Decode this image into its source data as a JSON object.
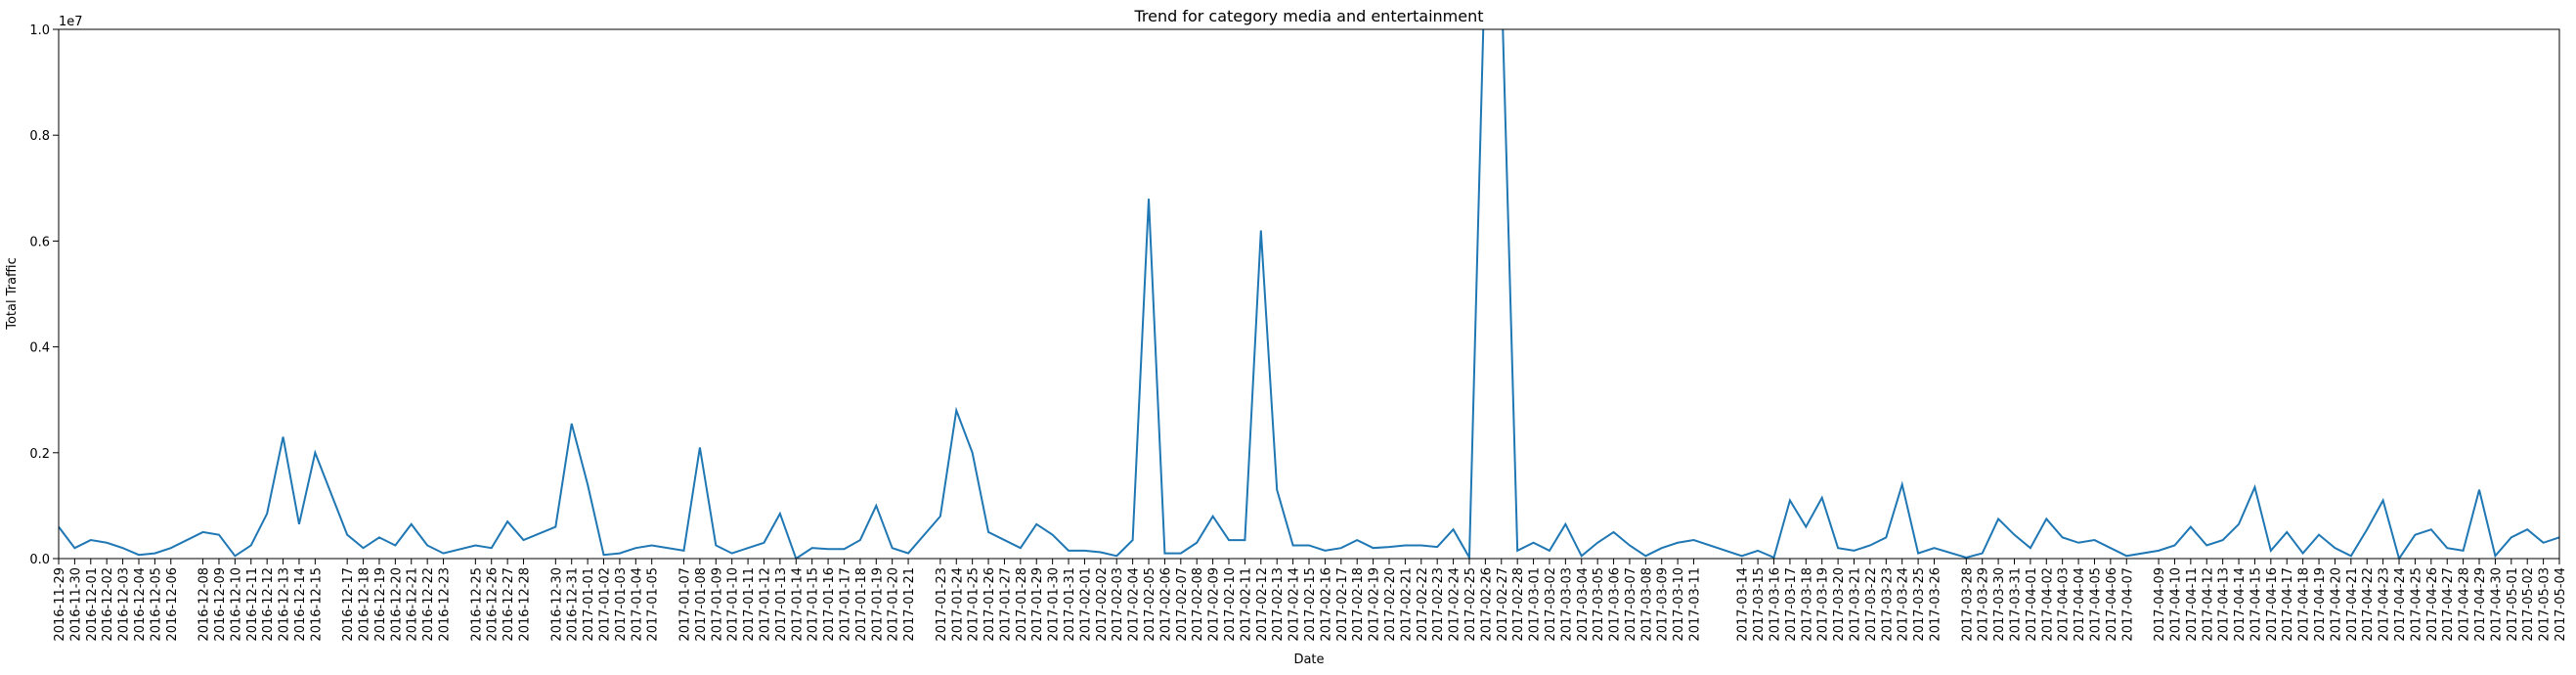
{
  "chart_data": {
    "type": "line",
    "title": "Trend for category media and entertainment",
    "x_label": "Date",
    "y_label": "Total Traffic",
    "y_offset_label": "1e7",
    "x": [
      "2016-11-29",
      "2016-11-30",
      "2016-12-01",
      "2016-12-02",
      "2016-12-03",
      "2016-12-04",
      "2016-12-05",
      "2016-12-06",
      "2016-12-08",
      "2016-12-09",
      "2016-12-10",
      "2016-12-11",
      "2016-12-12",
      "2016-12-13",
      "2016-12-14",
      "2016-12-15",
      "2016-12-17",
      "2016-12-18",
      "2016-12-19",
      "2016-12-20",
      "2016-12-21",
      "2016-12-22",
      "2016-12-23",
      "2016-12-25",
      "2016-12-26",
      "2016-12-27",
      "2016-12-28",
      "2016-12-30",
      "2016-12-31",
      "2017-01-01",
      "2017-01-02",
      "2017-01-03",
      "2017-01-04",
      "2017-01-05",
      "2017-01-07",
      "2017-01-08",
      "2017-01-09",
      "2017-01-10",
      "2017-01-11",
      "2017-01-12",
      "2017-01-13",
      "2017-01-14",
      "2017-01-15",
      "2017-01-16",
      "2017-01-17",
      "2017-01-18",
      "2017-01-19",
      "2017-01-20",
      "2017-01-21",
      "2017-01-23",
      "2017-01-24",
      "2017-01-25",
      "2017-01-26",
      "2017-01-27",
      "2017-01-28",
      "2017-01-29",
      "2017-01-30",
      "2017-01-31",
      "2017-02-01",
      "2017-02-02",
      "2017-02-03",
      "2017-02-04",
      "2017-02-05",
      "2017-02-06",
      "2017-02-07",
      "2017-02-08",
      "2017-02-09",
      "2017-02-10",
      "2017-02-11",
      "2017-02-12",
      "2017-02-13",
      "2017-02-14",
      "2017-02-15",
      "2017-02-16",
      "2017-02-17",
      "2017-02-18",
      "2017-02-19",
      "2017-02-20",
      "2017-02-21",
      "2017-02-22",
      "2017-02-23",
      "2017-02-24",
      "2017-02-25",
      "2017-02-26",
      "2017-02-27",
      "2017-02-28",
      "2017-03-01",
      "2017-03-02",
      "2017-03-03",
      "2017-03-04",
      "2017-03-05",
      "2017-03-06",
      "2017-03-07",
      "2017-03-08",
      "2017-03-09",
      "2017-03-10",
      "2017-03-11",
      "2017-03-14",
      "2017-03-15",
      "2017-03-16",
      "2017-03-17",
      "2017-03-18",
      "2017-03-19",
      "2017-03-20",
      "2017-03-21",
      "2017-03-22",
      "2017-03-23",
      "2017-03-24",
      "2017-03-25",
      "2017-03-26",
      "2017-03-28",
      "2017-03-29",
      "2017-03-30",
      "2017-03-31",
      "2017-04-01",
      "2017-04-02",
      "2017-04-03",
      "2017-04-04",
      "2017-04-05",
      "2017-04-06",
      "2017-04-07",
      "2017-04-09",
      "2017-04-10",
      "2017-04-11",
      "2017-04-12",
      "2017-04-13",
      "2017-04-14",
      "2017-04-15",
      "2017-04-16",
      "2017-04-17",
      "2017-04-18",
      "2017-04-19",
      "2017-04-20",
      "2017-04-21",
      "2017-04-22",
      "2017-04-23",
      "2017-04-24",
      "2017-04-25",
      "2017-04-26",
      "2017-04-27",
      "2017-04-28",
      "2017-04-29",
      "2017-04-30",
      "2017-05-01",
      "2017-05-02",
      "2017-05-03",
      "2017-05-04"
    ],
    "series": [
      {
        "name": "media and entertainment",
        "color": "#1f77b4",
        "values": [
          600000,
          200000,
          350000,
          300000,
          200000,
          70000,
          100000,
          200000,
          500000,
          450000,
          50000,
          250000,
          850000,
          2300000,
          650000,
          2000000,
          450000,
          200000,
          400000,
          250000,
          650000,
          250000,
          100000,
          250000,
          200000,
          700000,
          350000,
          600000,
          2550000,
          1400000,
          70000,
          100000,
          200000,
          250000,
          150000,
          2100000,
          250000,
          100000,
          200000,
          300000,
          850000,
          0,
          200000,
          180000,
          180000,
          350000,
          1000000,
          200000,
          100000,
          800000,
          2800000,
          2000000,
          500000,
          350000,
          200000,
          650000,
          450000,
          150000,
          150000,
          120000,
          50000,
          350000,
          6800000,
          100000,
          100000,
          300000,
          800000,
          350000,
          350000,
          6200000,
          1300000,
          250000,
          250000,
          150000,
          200000,
          350000,
          200000,
          220000,
          250000,
          250000,
          220000,
          550000,
          20000,
          11500000,
          11000000,
          150000,
          300000,
          150000,
          650000,
          50000,
          300000,
          500000,
          250000,
          50000,
          200000,
          300000,
          350000,
          50000,
          150000,
          20000,
          1100000,
          600000,
          1150000,
          200000,
          150000,
          250000,
          400000,
          1400000,
          100000,
          200000,
          20000,
          100000,
          750000,
          450000,
          200000,
          750000,
          400000,
          300000,
          350000,
          200000,
          50000,
          150000,
          250000,
          600000,
          250000,
          350000,
          650000,
          1350000,
          150000,
          500000,
          100000,
          450000,
          200000,
          50000,
          550000,
          1100000,
          0,
          450000,
          550000,
          200000,
          150000,
          1300000,
          50000,
          400000,
          550000,
          300000,
          400000
        ]
      }
    ],
    "xlim": [
      "2016-11-29",
      "2017-05-04"
    ],
    "ylim": [
      0,
      10000000
    ],
    "yticks": [
      {
        "value": 0,
        "label": "0.0"
      },
      {
        "value": 2000000,
        "label": "0.2"
      },
      {
        "value": 4000000,
        "label": "0.4"
      },
      {
        "value": 6000000,
        "label": "0.6"
      },
      {
        "value": 8000000,
        "label": "0.8"
      },
      {
        "value": 10000000,
        "label": "1.0"
      }
    ],
    "grid": false
  }
}
